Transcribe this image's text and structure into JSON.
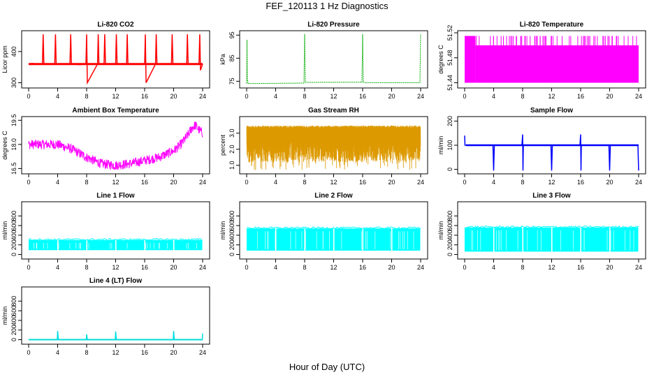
{
  "figure": {
    "title": "FEF_120113  1 Hz Diagnostics",
    "xlabel": "Hour of Day (UTC)"
  },
  "chart_data": [
    {
      "type": "line",
      "title": "Li-820 CO2",
      "ylabel": "Licor ppm",
      "color": "#ff0000",
      "xlim": [
        0,
        24
      ],
      "ylim": [
        290,
        460
      ],
      "yticks": [
        "300",
        "400"
      ],
      "xticks": [
        "0",
        "4",
        "8",
        "12",
        "16",
        "20",
        "24"
      ],
      "series": [
        {
          "x": [
            0,
            0.5,
            1,
            1.9,
            2,
            2.1,
            3,
            3.6,
            3.7,
            3.8,
            4.8,
            5,
            5.7,
            5.8,
            5.9,
            7,
            7.9,
            8,
            8.1,
            9.5,
            9.6,
            9.7,
            10.4,
            10.5,
            10.6,
            11.6,
            12,
            12.1,
            12.2,
            12.8,
            13.5,
            13.6,
            13.7,
            14.4,
            15.6,
            16,
            16.1,
            16.2,
            17.5,
            17.6,
            17.7,
            19.7,
            19.8,
            19.9,
            21.8,
            21.9,
            22,
            23.5,
            23.6,
            23.7,
            24
          ],
          "y": [
            360,
            362,
            360,
            360,
            455,
            360,
            361,
            360,
            455,
            360,
            360,
            360,
            360,
            455,
            360,
            358,
            360,
            455,
            300,
            360,
            455,
            360,
            361,
            455,
            360,
            360,
            360,
            455,
            360,
            361,
            360,
            455,
            360,
            360,
            360,
            360,
            455,
            300,
            360,
            455,
            360,
            360,
            455,
            360,
            360,
            455,
            360,
            360,
            455,
            340,
            360
          ]
        }
      ]
    },
    {
      "type": "line",
      "title": "Li-820 Pressure",
      "ylabel": "kPa",
      "color": "#00aa00",
      "xlim": [
        0,
        24
      ],
      "ylim": [
        73,
        96
      ],
      "yticks": [
        "75",
        "85",
        "95"
      ],
      "xticks": [
        "0",
        "4",
        "8",
        "12",
        "16",
        "20",
        "24"
      ],
      "series": [
        {
          "x": [
            0,
            0.05,
            0.1,
            0.2,
            7.9,
            8,
            8.1,
            8.3,
            15.9,
            16,
            16.1,
            16.3,
            23.9,
            24
          ],
          "y": [
            74,
            93,
            76,
            74,
            74.2,
            95.5,
            74.5,
            74.5,
            74.6,
            95.5,
            74.6,
            74.4,
            74.4,
            95.5
          ]
        }
      ]
    },
    {
      "type": "area",
      "title": "Li-820 Temperature",
      "ylabel": "degrees C",
      "color": "#ff00ff",
      "xlim": [
        0,
        24
      ],
      "ylim": [
        51.435,
        51.52
      ],
      "yticks": [
        "51.44",
        "51.48",
        "51.52"
      ],
      "xticks": [
        "0",
        "4",
        "8",
        "12",
        "16",
        "20",
        "24"
      ],
      "series": [
        {
          "x": [
            0,
            1.5,
            1.5,
            24
          ],
          "y_low": [
            51.44,
            51.44,
            51.44,
            51.44
          ],
          "y_high": [
            51.515,
            51.515,
            51.5,
            51.5
          ]
        }
      ]
    },
    {
      "type": "line",
      "title": "Ambient Box Temperature",
      "ylabel": "degrees C",
      "color": "#ff00ff",
      "xlim": [
        0,
        24
      ],
      "ylim": [
        16.3,
        19.6
      ],
      "yticks": [
        "16.5",
        "18.0",
        "19.5"
      ],
      "xticks": [
        "0",
        "4",
        "8",
        "12",
        "16",
        "20",
        "24"
      ],
      "series": [
        {
          "x": [
            0,
            2,
            4,
            6,
            8,
            10,
            12,
            14,
            16,
            18,
            20,
            21,
            22,
            22.5,
            23,
            23.5,
            24
          ],
          "y": [
            18.0,
            18.0,
            18.0,
            17.7,
            17.2,
            16.8,
            16.7,
            16.8,
            17.0,
            17.2,
            17.6,
            18.0,
            18.6,
            19.0,
            19.2,
            18.9,
            18.7
          ],
          "spread": 0.6
        }
      ]
    },
    {
      "type": "line",
      "title": "Gas Stream RH",
      "ylabel": "percent",
      "color": "#dd9900",
      "xlim": [
        0,
        24
      ],
      "ylim": [
        0.6,
        3.9
      ],
      "yticks": [
        "1.0",
        "2.0",
        "3.0"
      ],
      "xticks": [
        "0",
        "4",
        "8",
        "12",
        "16",
        "20",
        "24"
      ],
      "series": [
        {
          "x": [
            0,
            24
          ],
          "y_high": [
            3.4,
            3.4
          ],
          "y_low": [
            1.2,
            1.2
          ],
          "dips_min": 0.7
        }
      ]
    },
    {
      "type": "line",
      "title": "Sample Flow",
      "ylabel": "ml/min",
      "color": "#0000ff",
      "xlim": [
        0,
        24
      ],
      "ylim": [
        -10,
        210
      ],
      "yticks": [
        "0",
        "100",
        "200"
      ],
      "xticks": [
        "0",
        "4",
        "8",
        "12",
        "16",
        "20",
        "24"
      ],
      "series": [
        {
          "x": [
            0,
            0.05,
            0.3,
            3.9,
            4,
            4.1,
            7.9,
            8,
            8.05,
            8.1,
            11.9,
            12,
            12.1,
            15.9,
            16,
            16.05,
            16.1,
            19.9,
            20,
            20.1,
            23.9,
            24
          ],
          "y": [
            140,
            100,
            100,
            100,
            -5,
            100,
            100,
            145,
            -5,
            100,
            100,
            -5,
            100,
            100,
            145,
            -5,
            100,
            100,
            -5,
            100,
            100,
            -5
          ]
        }
      ]
    },
    {
      "type": "area",
      "title": "Line 1 Flow",
      "ylabel": "ml/min",
      "color": "#00ffff",
      "xlim": [
        0,
        24
      ],
      "ylim": [
        -50,
        1050
      ],
      "yticks": [
        "0",
        "200",
        "400",
        "600",
        "800"
      ],
      "xticks": [
        "0",
        "4",
        "8",
        "12",
        "16",
        "20",
        "24"
      ],
      "series": [
        {
          "x": [
            0,
            24
          ],
          "y_low": [
            90,
            90
          ],
          "y_high": [
            300,
            300
          ],
          "gaps": [
            4,
            8,
            12,
            16,
            20
          ]
        }
      ]
    },
    {
      "type": "area",
      "title": "Line 2 Flow",
      "ylabel": "ml/min",
      "color": "#00ffff",
      "xlim": [
        0,
        24
      ],
      "ylim": [
        -50,
        1050
      ],
      "yticks": [
        "0",
        "200",
        "400",
        "600",
        "800"
      ],
      "xticks": [
        "0",
        "4",
        "8",
        "12",
        "16",
        "20",
        "24"
      ],
      "series": [
        {
          "x": [
            0,
            24
          ],
          "y_low": [
            80,
            80
          ],
          "y_high": [
            540,
            540
          ],
          "gaps": [
            4,
            8,
            12,
            16,
            20
          ]
        }
      ]
    },
    {
      "type": "area",
      "title": "Line 3 Flow",
      "ylabel": "ml/min",
      "color": "#00ffff",
      "xlim": [
        0,
        24
      ],
      "ylim": [
        -50,
        1050
      ],
      "yticks": [
        "0",
        "200",
        "400",
        "600",
        "800"
      ],
      "xticks": [
        "0",
        "4",
        "8",
        "12",
        "16",
        "20",
        "24"
      ],
      "series": [
        {
          "x": [
            0,
            24
          ],
          "y_low": [
            60,
            60
          ],
          "y_high": [
            560,
            560
          ],
          "gaps": [
            4,
            8,
            12,
            16,
            20
          ]
        }
      ]
    },
    {
      "type": "line",
      "title": "Line 4 (LT) Flow",
      "ylabel": "ml/min",
      "color": "#00dddd",
      "xlim": [
        0,
        24
      ],
      "ylim": [
        -50,
        1050
      ],
      "yticks": [
        "0",
        "200",
        "400",
        "600",
        "800"
      ],
      "xticks": [
        "0",
        "4",
        "8",
        "12",
        "16",
        "20",
        "24"
      ],
      "series": [
        {
          "x": [
            0,
            3.95,
            4,
            4.1,
            7.95,
            8,
            8.1,
            11.95,
            12,
            12.1,
            19.95,
            20,
            20.1,
            23.95,
            24
          ],
          "y": [
            0,
            0,
            180,
            0,
            0,
            110,
            0,
            0,
            170,
            0,
            0,
            180,
            0,
            0,
            130
          ]
        }
      ]
    }
  ]
}
